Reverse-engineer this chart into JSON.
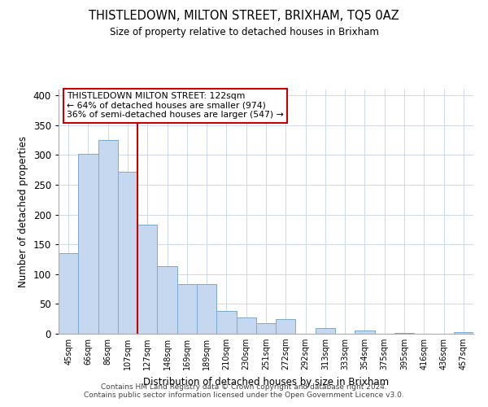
{
  "title": "THISTLEDOWN, MILTON STREET, BRIXHAM, TQ5 0AZ",
  "subtitle": "Size of property relative to detached houses in Brixham",
  "xlabel": "Distribution of detached houses by size in Brixham",
  "ylabel": "Number of detached properties",
  "categories": [
    "45sqm",
    "66sqm",
    "86sqm",
    "107sqm",
    "127sqm",
    "148sqm",
    "169sqm",
    "189sqm",
    "210sqm",
    "230sqm",
    "251sqm",
    "272sqm",
    "292sqm",
    "313sqm",
    "333sqm",
    "354sqm",
    "375sqm",
    "395sqm",
    "416sqm",
    "436sqm",
    "457sqm"
  ],
  "values": [
    135,
    302,
    325,
    272,
    183,
    113,
    84,
    84,
    38,
    27,
    18,
    25,
    0,
    10,
    0,
    5,
    0,
    1,
    0,
    0,
    3
  ],
  "bar_color": "#c5d8f0",
  "bar_edge_color": "#7aaad0",
  "vline_x": 3.5,
  "vline_color": "#cc0000",
  "annotation_text": "THISTLEDOWN MILTON STREET: 122sqm\n← 64% of detached houses are smaller (974)\n36% of semi-detached houses are larger (547) →",
  "annotation_box_color": "#ffffff",
  "annotation_box_edge_color": "#cc0000",
  "ylim": [
    0,
    410
  ],
  "yticks": [
    0,
    50,
    100,
    150,
    200,
    250,
    300,
    350,
    400
  ],
  "footer": "Contains HM Land Registry data © Crown copyright and database right 2024.\nContains public sector information licensed under the Open Government Licence v3.0.",
  "background_color": "#ffffff",
  "grid_color": "#ccd8ec"
}
